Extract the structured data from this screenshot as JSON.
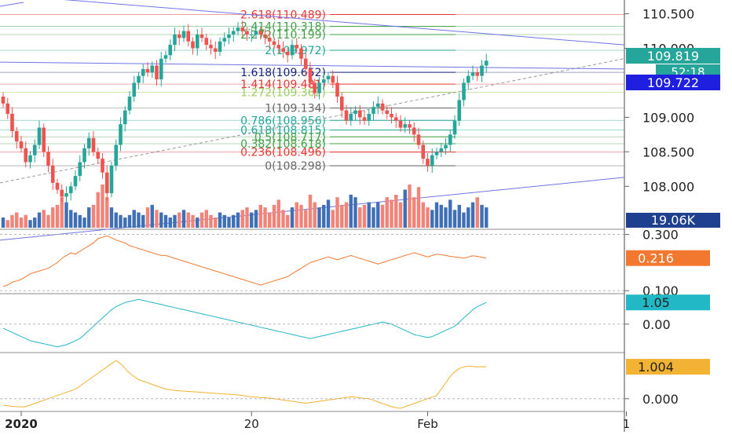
{
  "chart_data": {
    "type": "candlestick",
    "symbol": "USDJPY",
    "colors": {
      "up": "#26a69a",
      "down": "#ef5350",
      "volume_up": "#3f6fb5",
      "volume_down": "#f28379",
      "trendline": "#6f73e6",
      "indicator1": "#f2772f",
      "indicator2": "#22b8c6",
      "indicator3": "#f2b233",
      "last_price_bg": "#26a69a",
      "ref_price_bg": "#1f1fe0",
      "volume_bg": "#1f3f8f",
      "fib_red": "#e53935",
      "fib_green": "#43a047",
      "fib_blue": "#1a237e",
      "fib_teal": "#26a69a",
      "fib_gray": "#666666"
    },
    "price_axis": {
      "min": 107.4,
      "max": 110.7,
      "ticks": [
        "110.500",
        "110.000",
        "109.000",
        "108.500",
        "108.000"
      ],
      "tick_values": [
        110.5,
        110.0,
        109.0,
        108.5,
        108.0
      ]
    },
    "last_price": "109.819",
    "countdown": "52:18",
    "ref_price": "109.722",
    "volume_label": "19.06K",
    "x_axis_labels": [
      {
        "label": "2020",
        "bar": 4
      },
      {
        "label": "20",
        "bar": 55
      },
      {
        "label": "Feb",
        "bar": 94
      },
      {
        "label": "1",
        "bar": 138
      }
    ],
    "fib_levels": [
      {
        "label": "2.618(110.489)",
        "price": 110.489,
        "color": "#e53935"
      },
      {
        "label": "2.414(110.318)",
        "price": 110.318,
        "color": "#43a047"
      },
      {
        "label": "2.272(110.199)",
        "price": 110.199,
        "color": "#43a047"
      },
      {
        "label": "2(109.972)",
        "price": 109.972,
        "color": "#26a69a"
      },
      {
        "label": "1.618(109.652)",
        "price": 109.652,
        "color": "#1a237e"
      },
      {
        "label": "1.414(109.481)",
        "price": 109.481,
        "color": "#e53935"
      },
      {
        "label": "1.272(109.362)",
        "price": 109.362,
        "color": "#9ccc65"
      },
      {
        "label": "1(109.134)",
        "price": 109.134,
        "color": "#666666"
      },
      {
        "label": "0.786(108.956)",
        "price": 108.956,
        "color": "#26a69a"
      },
      {
        "label": "0.618(108.815)",
        "price": 108.815,
        "color": "#26a69a"
      },
      {
        "label": "0.5(108.717)",
        "price": 108.717,
        "color": "#43a047"
      },
      {
        "label": "0.382(108.618)",
        "price": 108.618,
        "color": "#43a047"
      },
      {
        "label": "0.236(108.496)",
        "price": 108.496,
        "color": "#e53935"
      },
      {
        "label": "0(108.298)",
        "price": 108.298,
        "color": "#666666"
      }
    ],
    "closes": [
      109.2,
      109.05,
      108.8,
      108.65,
      108.55,
      108.35,
      108.45,
      108.6,
      108.85,
      108.5,
      108.3,
      108.05,
      107.95,
      107.85,
      107.9,
      108.0,
      108.15,
      108.35,
      108.55,
      108.7,
      108.5,
      108.4,
      108.2,
      107.9,
      108.3,
      108.6,
      108.9,
      109.1,
      109.3,
      109.5,
      109.6,
      109.7,
      109.65,
      109.75,
      109.55,
      109.85,
      109.9,
      110.05,
      110.2,
      110.15,
      110.25,
      110.1,
      110.0,
      110.2,
      110.15,
      110.05,
      110.0,
      109.95,
      110.1,
      110.15,
      110.2,
      110.25,
      110.3,
      110.25,
      110.2,
      110.2,
      110.25,
      110.2,
      110.15,
      110.1,
      110.05,
      110.0,
      109.95,
      109.9,
      110.05,
      110.0,
      109.85,
      109.7,
      109.5,
      109.35,
      109.5,
      109.55,
      109.6,
      109.5,
      109.3,
      109.1,
      108.95,
      109.05,
      109.1,
      109.0,
      108.95,
      109.05,
      109.15,
      109.2,
      109.1,
      109.05,
      109.0,
      108.95,
      108.85,
      108.9,
      108.85,
      108.75,
      108.6,
      108.4,
      108.3,
      108.45,
      108.5,
      108.55,
      108.6,
      108.75,
      108.95,
      109.25,
      109.5,
      109.6,
      109.65,
      109.6,
      109.75,
      109.82
    ],
    "volumes": [
      0.4,
      0.3,
      0.5,
      0.6,
      0.4,
      0.5,
      0.3,
      0.4,
      0.6,
      0.7,
      0.5,
      0.8,
      0.9,
      1.2,
      1.0,
      0.7,
      0.6,
      0.5,
      0.4,
      0.8,
      0.9,
      1.4,
      1.7,
      1.2,
      0.8,
      0.6,
      0.5,
      0.4,
      0.5,
      0.7,
      0.6,
      0.5,
      0.8,
      0.9,
      0.7,
      0.6,
      0.5,
      0.4,
      0.5,
      0.6,
      0.7,
      0.6,
      0.5,
      0.4,
      0.6,
      0.7,
      0.5,
      0.4,
      0.6,
      0.5,
      0.4,
      0.5,
      0.6,
      0.7,
      0.8,
      0.6,
      0.7,
      0.9,
      0.8,
      0.6,
      0.9,
      1.1,
      0.7,
      0.5,
      0.8,
      1.0,
      0.9,
      0.7,
      1.3,
      1.0,
      0.8,
      0.9,
      1.1,
      0.7,
      1.2,
      0.9,
      1.0,
      1.3,
      1.2,
      0.8,
      0.9,
      1.0,
      0.8,
      1.0,
      0.9,
      1.2,
      1.1,
      1.3,
      1.0,
      1.5,
      1.7,
      1.2,
      1.6,
      1.0,
      0.8,
      0.7,
      1.0,
      0.9,
      0.8,
      1.1,
      0.7,
      0.9,
      0.6,
      0.8,
      1.0,
      1.2,
      0.9,
      0.8
    ],
    "indicator1": {
      "last_value": "0.216",
      "ticks": [
        "0.300",
        "0.100"
      ],
      "tick_values": [
        0.3,
        0.1
      ],
      "min": 0.095,
      "max": 0.31,
      "values": [
        0.115,
        0.12,
        0.13,
        0.135,
        0.14,
        0.15,
        0.16,
        0.165,
        0.17,
        0.175,
        0.18,
        0.19,
        0.2,
        0.215,
        0.225,
        0.235,
        0.23,
        0.24,
        0.25,
        0.26,
        0.27,
        0.285,
        0.29,
        0.295,
        0.288,
        0.28,
        0.275,
        0.27,
        0.26,
        0.255,
        0.25,
        0.245,
        0.24,
        0.235,
        0.23,
        0.225,
        0.225,
        0.22,
        0.215,
        0.21,
        0.205,
        0.2,
        0.195,
        0.19,
        0.185,
        0.18,
        0.175,
        0.17,
        0.165,
        0.16,
        0.155,
        0.15,
        0.145,
        0.14,
        0.135,
        0.13,
        0.125,
        0.12,
        0.125,
        0.13,
        0.135,
        0.14,
        0.145,
        0.15,
        0.16,
        0.17,
        0.18,
        0.19,
        0.2,
        0.205,
        0.21,
        0.215,
        0.22,
        0.215,
        0.21,
        0.215,
        0.22,
        0.225,
        0.22,
        0.215,
        0.21,
        0.205,
        0.2,
        0.195,
        0.2,
        0.205,
        0.21,
        0.215,
        0.22,
        0.225,
        0.23,
        0.235,
        0.23,
        0.225,
        0.22,
        0.225,
        0.23,
        0.228,
        0.225,
        0.222,
        0.22,
        0.218,
        0.216,
        0.22,
        0.224,
        0.222,
        0.219,
        0.216
      ]
    },
    "indicator2": {
      "last_value": "1.05",
      "ticks": [
        "0.00"
      ],
      "tick_values": [
        0.0
      ],
      "min": -1.3,
      "max": 1.4,
      "values": [
        -0.2,
        -0.3,
        -0.4,
        -0.5,
        -0.6,
        -0.7,
        -0.8,
        -0.85,
        -0.9,
        -0.95,
        -1.0,
        -1.05,
        -1.1,
        -1.05,
        -1.0,
        -0.9,
        -0.8,
        -0.7,
        -0.5,
        -0.3,
        -0.1,
        0.1,
        0.3,
        0.5,
        0.7,
        0.85,
        0.95,
        1.05,
        1.1,
        1.15,
        1.2,
        1.15,
        1.1,
        1.05,
        1.0,
        0.95,
        0.9,
        0.85,
        0.8,
        0.75,
        0.7,
        0.65,
        0.6,
        0.55,
        0.5,
        0.45,
        0.4,
        0.35,
        0.3,
        0.25,
        0.2,
        0.15,
        0.1,
        0.05,
        0.0,
        -0.05,
        -0.1,
        -0.15,
        -0.2,
        -0.25,
        -0.3,
        -0.35,
        -0.4,
        -0.45,
        -0.5,
        -0.55,
        -0.6,
        -0.65,
        -0.7,
        -0.65,
        -0.6,
        -0.55,
        -0.5,
        -0.45,
        -0.4,
        -0.35,
        -0.3,
        -0.25,
        -0.2,
        -0.15,
        -0.1,
        -0.05,
        0.0,
        0.05,
        0.1,
        0.05,
        0.0,
        -0.1,
        -0.2,
        -0.3,
        -0.4,
        -0.5,
        -0.55,
        -0.6,
        -0.65,
        -0.6,
        -0.5,
        -0.4,
        -0.3,
        -0.2,
        -0.1,
        0.1,
        0.3,
        0.5,
        0.7,
        0.85,
        0.95,
        1.05
      ]
    },
    "indicator3": {
      "last_value": "1.004",
      "ticks": [
        "0.000"
      ],
      "tick_values": [
        0.0
      ],
      "min": -0.35,
      "max": 1.4,
      "values": [
        -0.2,
        -0.22,
        -0.24,
        -0.25,
        -0.26,
        -0.25,
        -0.2,
        -0.15,
        -0.1,
        -0.05,
        0.0,
        0.05,
        0.1,
        0.15,
        0.2,
        0.25,
        0.3,
        0.4,
        0.5,
        0.6,
        0.7,
        0.8,
        0.9,
        1.0,
        1.1,
        1.2,
        1.1,
        0.95,
        0.8,
        0.7,
        0.6,
        0.55,
        0.5,
        0.45,
        0.4,
        0.35,
        0.3,
        0.28,
        0.26,
        0.25,
        0.24,
        0.23,
        0.22,
        0.21,
        0.2,
        0.19,
        0.18,
        0.17,
        0.16,
        0.15,
        0.14,
        0.13,
        0.12,
        0.1,
        0.08,
        0.06,
        0.05,
        0.04,
        0.03,
        0.02,
        0.0,
        -0.02,
        -0.04,
        -0.06,
        -0.08,
        -0.1,
        -0.12,
        -0.14,
        -0.12,
        -0.1,
        -0.08,
        -0.06,
        -0.04,
        -0.02,
        0.0,
        0.02,
        0.04,
        0.06,
        0.05,
        0.03,
        0.01,
        0.0,
        -0.05,
        -0.1,
        -0.15,
        -0.2,
        -0.25,
        -0.28,
        -0.3,
        -0.25,
        -0.2,
        -0.15,
        -0.1,
        -0.05,
        0.0,
        0.05,
        0.1,
        0.3,
        0.5,
        0.7,
        0.85,
        0.95,
        1.0,
        1.02,
        1.01,
        1.0,
        1.005,
        1.004
      ]
    }
  }
}
